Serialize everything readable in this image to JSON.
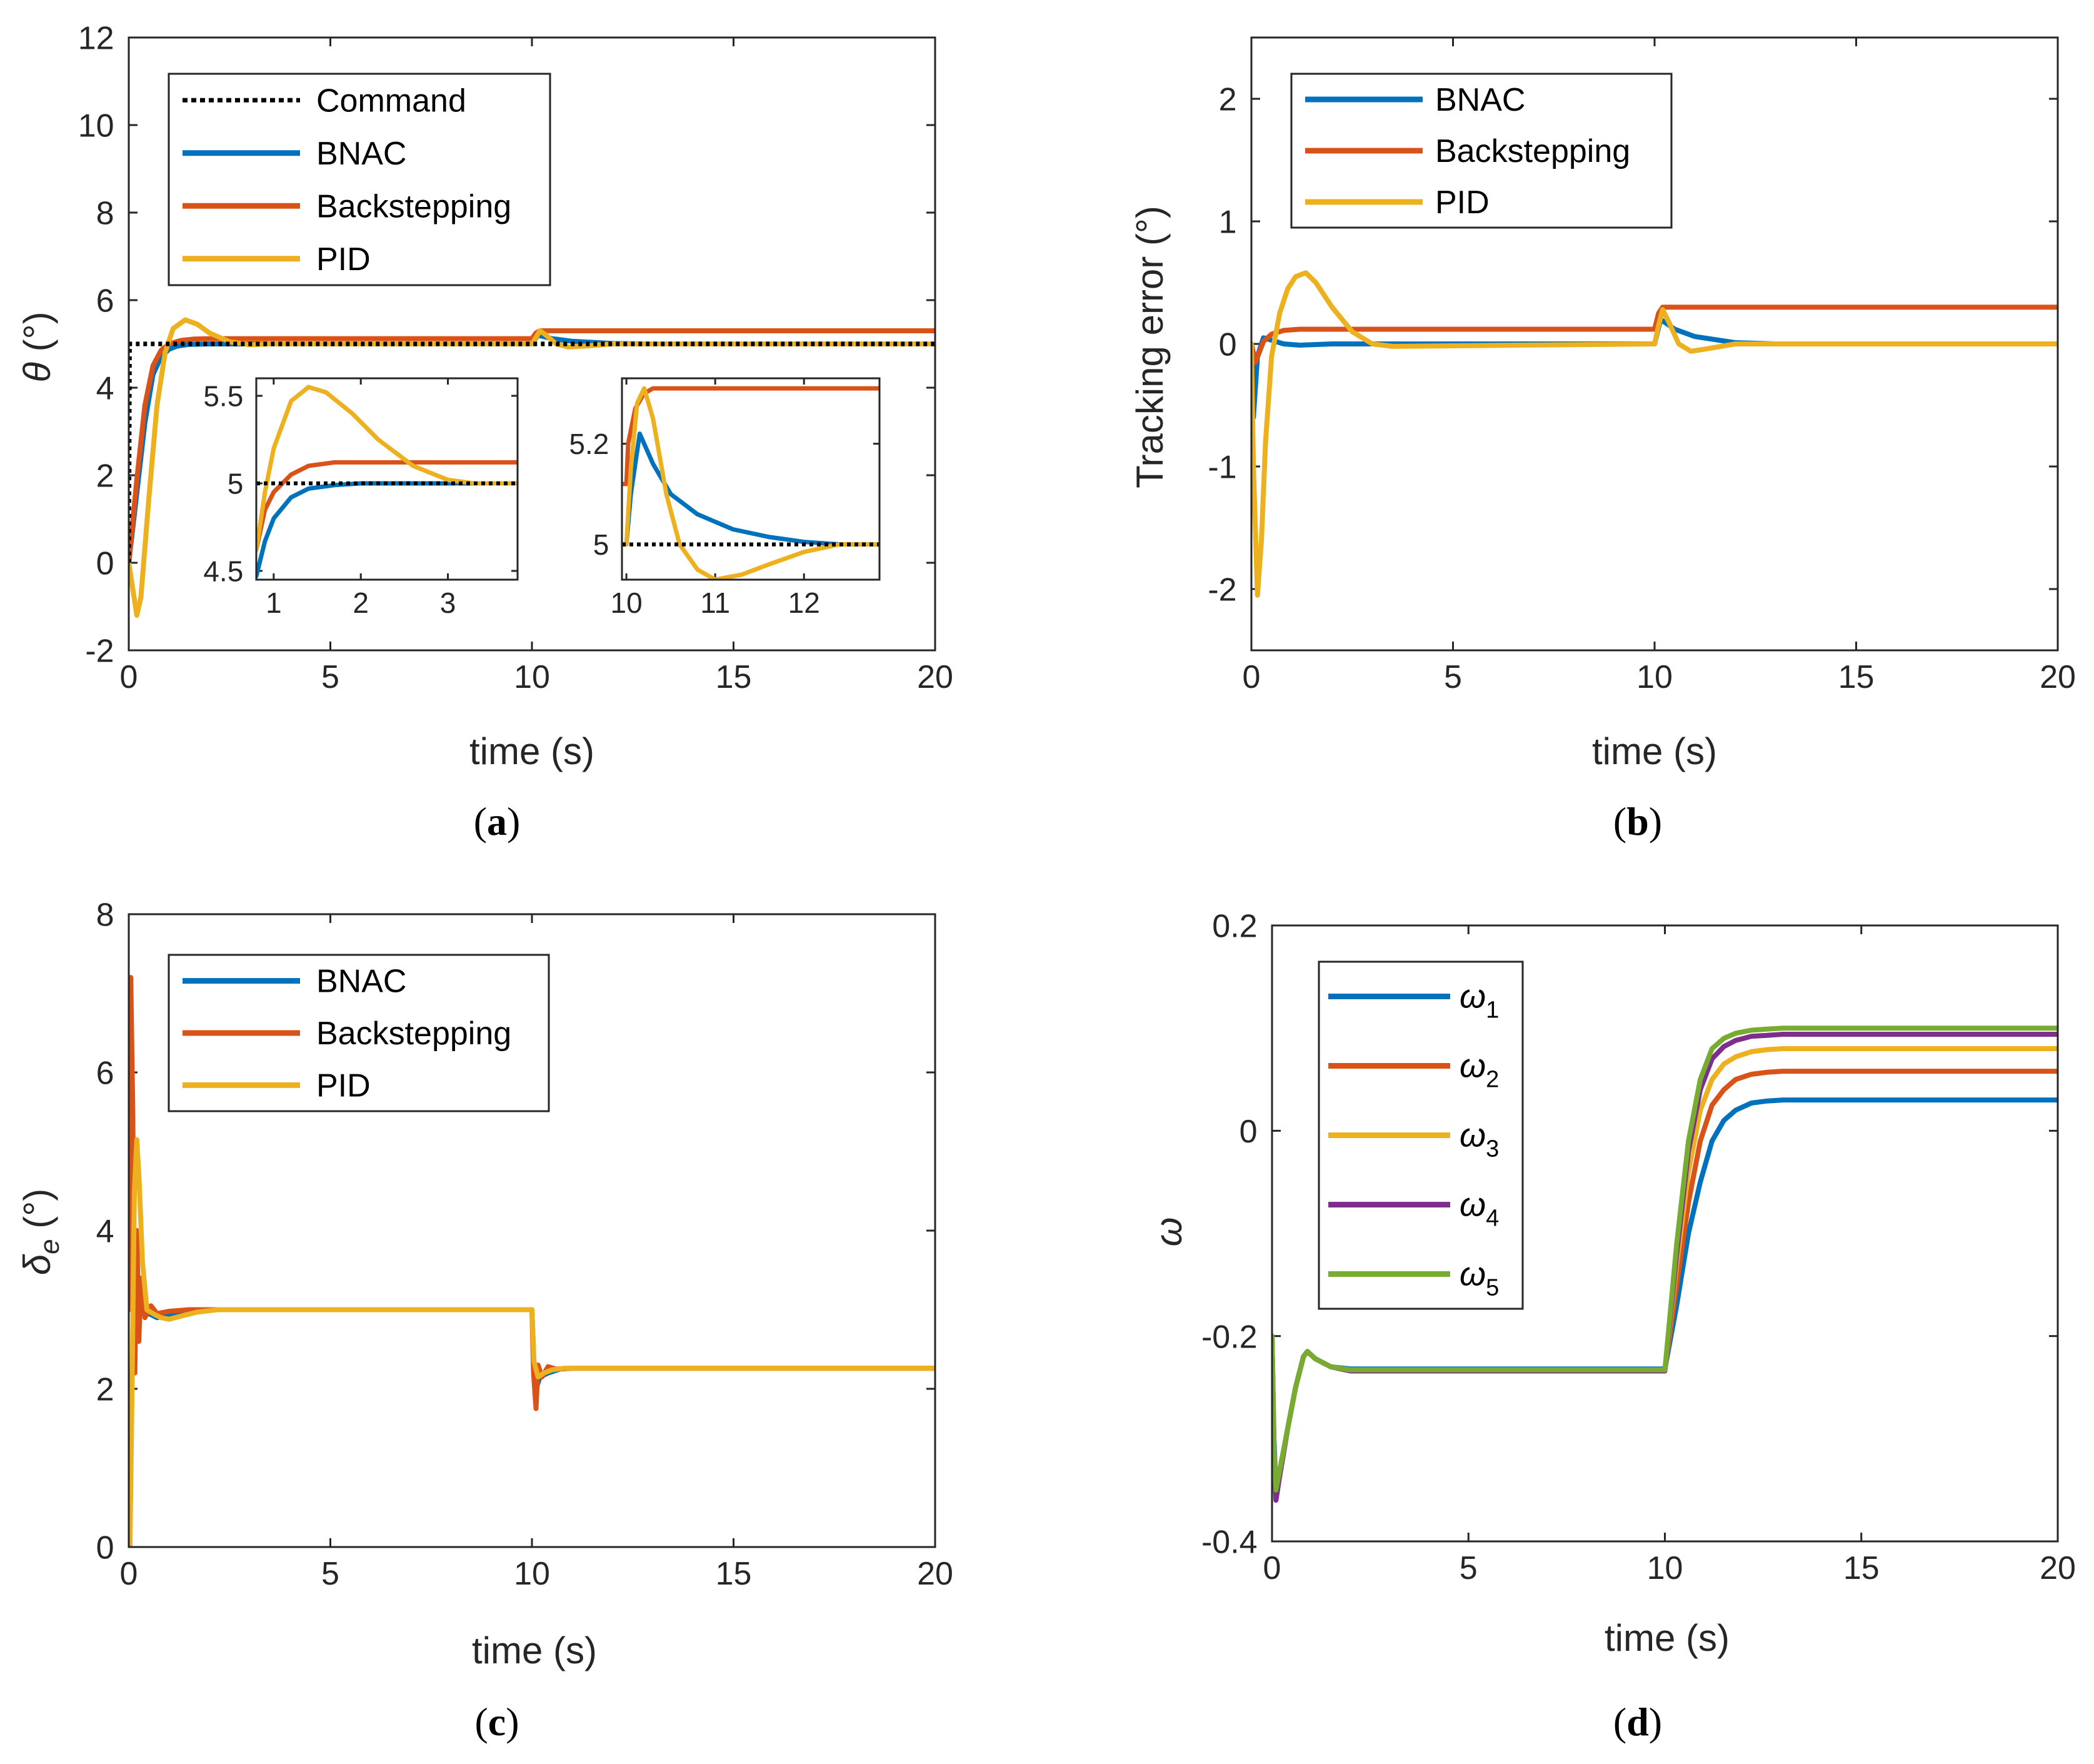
{
  "chart_data": [
    {
      "id": "a",
      "type": "line",
      "caption": "a",
      "xlabel": "time (s)",
      "ylabel": "θ (°)",
      "xlim": [
        0,
        20
      ],
      "ylim": [
        -2,
        12
      ],
      "xticks": [
        "0",
        "5",
        "10",
        "15",
        "20"
      ],
      "yticks": [
        "-2",
        "0",
        "2",
        "4",
        "6",
        "8",
        "10",
        "12"
      ],
      "legend": [
        "Command",
        "BNAC",
        "Backstepping",
        "PID"
      ],
      "series": [
        {
          "name": "Command",
          "color": "#000000",
          "dash": true,
          "x": [
            0,
            0.02,
            20
          ],
          "y": [
            0,
            5,
            5
          ]
        },
        {
          "name": "BNAC",
          "color": "#0072BD",
          "x": [
            0,
            0.2,
            0.4,
            0.6,
            0.8,
            1.0,
            1.2,
            1.5,
            2,
            3,
            10,
            10.15,
            10.5,
            11,
            12,
            13,
            20
          ],
          "y": [
            0,
            1.6,
            3.2,
            4.3,
            4.7,
            4.88,
            4.95,
            4.99,
            5.0,
            5.0,
            5.0,
            5.2,
            5.12,
            5.06,
            5.01,
            5.0,
            5.0
          ]
        },
        {
          "name": "Backstepping",
          "color": "#D95319",
          "x": [
            0,
            0.2,
            0.4,
            0.6,
            0.8,
            1.0,
            1.3,
            1.6,
            2,
            10,
            10.1,
            10.2,
            20
          ],
          "y": [
            0,
            1.9,
            3.6,
            4.5,
            4.85,
            5.0,
            5.08,
            5.11,
            5.12,
            5.12,
            5.25,
            5.3,
            5.3
          ]
        },
        {
          "name": "PID",
          "color": "#EDB120",
          "x": [
            0,
            0.1,
            0.2,
            0.3,
            0.5,
            0.7,
            0.9,
            1.1,
            1.4,
            1.7,
            2.0,
            2.5,
            3.0,
            3.5,
            10,
            10.1,
            10.2,
            10.35,
            10.6,
            10.9,
            11.3,
            12,
            12.5,
            20
          ],
          "y": [
            0,
            -0.6,
            -1.2,
            -0.8,
            1.5,
            3.6,
            4.8,
            5.35,
            5.55,
            5.45,
            5.25,
            5.05,
            4.98,
            5.0,
            5.0,
            5.15,
            5.3,
            5.2,
            5.0,
            4.93,
            4.95,
            5.0,
            5.0,
            5.0
          ]
        }
      ],
      "insets": [
        {
          "xlim": [
            0.8,
            3.8
          ],
          "ylim": [
            4.45,
            5.6
          ],
          "xticks": [
            "1",
            "2",
            "3"
          ],
          "yticks": [
            "4.5",
            "5",
            "5.5"
          ],
          "series": [
            {
              "name": "Command",
              "color": "#000000",
              "dash": true,
              "x": [
                0.8,
                3.8
              ],
              "y": [
                5,
                5
              ]
            },
            {
              "name": "BNAC",
              "color": "#0072BD",
              "x": [
                0.8,
                0.9,
                1.0,
                1.2,
                1.4,
                1.7,
                2.0,
                2.5,
                3.0,
                3.8
              ],
              "y": [
                4.47,
                4.67,
                4.8,
                4.92,
                4.97,
                4.99,
                5.0,
                5.0,
                5.0,
                5.0
              ]
            },
            {
              "name": "Backstepping",
              "color": "#D95319",
              "x": [
                0.8,
                0.9,
                1.0,
                1.2,
                1.4,
                1.7,
                2.0,
                3.8
              ],
              "y": [
                4.62,
                4.85,
                4.95,
                5.05,
                5.1,
                5.12,
                5.12,
                5.12
              ]
            },
            {
              "name": "PID",
              "color": "#EDB120",
              "x": [
                0.8,
                0.9,
                1.0,
                1.2,
                1.4,
                1.6,
                1.9,
                2.2,
                2.6,
                3.0,
                3.3,
                3.8
              ],
              "y": [
                4.62,
                4.95,
                5.2,
                5.47,
                5.55,
                5.52,
                5.4,
                5.25,
                5.1,
                5.02,
                5.0,
                5.0
              ]
            }
          ]
        },
        {
          "xlim": [
            9.95,
            12.85
          ],
          "ylim": [
            4.93,
            5.33
          ],
          "xticks": [
            "10",
            "11",
            "12"
          ],
          "yticks": [
            "5",
            "5.2"
          ],
          "series": [
            {
              "name": "Command",
              "color": "#000000",
              "dash": true,
              "x": [
                9.95,
                12.85
              ],
              "y": [
                5,
                5
              ]
            },
            {
              "name": "BNAC",
              "color": "#0072BD",
              "x": [
                9.95,
                10.0,
                10.05,
                10.15,
                10.3,
                10.5,
                10.8,
                11.2,
                11.6,
                12.0,
                12.4,
                12.85
              ],
              "y": [
                5.0,
                5.0,
                5.1,
                5.22,
                5.16,
                5.1,
                5.06,
                5.03,
                5.015,
                5.005,
                5.0,
                5.0
              ]
            },
            {
              "name": "Backstepping",
              "color": "#D95319",
              "x": [
                9.95,
                10.0,
                10.02,
                10.1,
                10.2,
                10.3,
                12.85
              ],
              "y": [
                5.12,
                5.12,
                5.2,
                5.27,
                5.3,
                5.31,
                5.31
              ]
            },
            {
              "name": "PID",
              "color": "#EDB120",
              "x": [
                9.95,
                10.0,
                10.05,
                10.12,
                10.2,
                10.3,
                10.45,
                10.6,
                10.8,
                11.0,
                11.3,
                11.6,
                12.0,
                12.4,
                12.85
              ],
              "y": [
                5.0,
                5.0,
                5.15,
                5.28,
                5.31,
                5.25,
                5.1,
                5.0,
                4.95,
                4.93,
                4.94,
                4.96,
                4.985,
                5.0,
                5.0
              ]
            }
          ]
        }
      ]
    },
    {
      "id": "b",
      "type": "line",
      "caption": "b",
      "xlabel": "time (s)",
      "ylabel": "Tracking error (°)",
      "xlim": [
        0,
        20
      ],
      "ylim": [
        -2.5,
        2.5
      ],
      "xticks": [
        "0",
        "5",
        "10",
        "15",
        "20"
      ],
      "yticks": [
        "-2",
        "-1",
        "0",
        "1",
        "2"
      ],
      "legend": [
        "BNAC",
        "Backstepping",
        "PID"
      ],
      "series": [
        {
          "name": "BNAC",
          "color": "#0072BD",
          "x": [
            0,
            0.05,
            0.15,
            0.3,
            0.5,
            0.8,
            1.2,
            2,
            10,
            10.15,
            10.5,
            11,
            12,
            13,
            20
          ],
          "y": [
            0,
            -0.6,
            -0.1,
            0.05,
            0.03,
            0.0,
            -0.01,
            0.0,
            0.0,
            0.2,
            0.12,
            0.06,
            0.01,
            0.0,
            0.0
          ]
        },
        {
          "name": "Backstepping",
          "color": "#D95319",
          "x": [
            0,
            0.1,
            0.3,
            0.5,
            0.8,
            1.2,
            10,
            10.1,
            10.2,
            20
          ],
          "y": [
            0,
            -0.15,
            0.02,
            0.08,
            0.11,
            0.12,
            0.12,
            0.25,
            0.3,
            0.3
          ]
        },
        {
          "name": "PID",
          "color": "#EDB120",
          "x": [
            0,
            0.05,
            0.15,
            0.25,
            0.35,
            0.5,
            0.7,
            0.9,
            1.1,
            1.35,
            1.6,
            2.0,
            2.5,
            3.0,
            3.5,
            10,
            10.1,
            10.2,
            10.35,
            10.6,
            10.9,
            11.3,
            12,
            12.5,
            20
          ],
          "y": [
            0,
            -1.0,
            -2.05,
            -1.6,
            -0.8,
            -0.1,
            0.25,
            0.45,
            0.55,
            0.58,
            0.5,
            0.3,
            0.1,
            0.0,
            -0.02,
            0.0,
            0.15,
            0.28,
            0.18,
            0.0,
            -0.06,
            -0.04,
            0.0,
            0.0,
            0.0
          ]
        }
      ]
    },
    {
      "id": "c",
      "type": "line",
      "caption": "c",
      "xlabel": "time (s)",
      "ylabel": "δe (°)",
      "xlim": [
        0,
        20
      ],
      "ylim": [
        0,
        8
      ],
      "xticks": [
        "0",
        "5",
        "10",
        "15",
        "20"
      ],
      "yticks": [
        "0",
        "2",
        "4",
        "6",
        "8"
      ],
      "legend": [
        "BNAC",
        "Backstepping",
        "PID"
      ],
      "series": [
        {
          "name": "BNAC",
          "color": "#0072BD",
          "x": [
            0,
            0.05,
            0.1,
            0.15,
            0.25,
            0.35,
            0.5,
            0.7,
            1.0,
            1.5,
            2,
            10,
            10.05,
            10.1,
            10.2,
            10.4,
            10.7,
            11,
            20
          ],
          "y": [
            3.0,
            4.0,
            3.5,
            2.6,
            3.3,
            3.0,
            2.95,
            2.9,
            2.93,
            2.97,
            3.0,
            3.0,
            2.3,
            2.0,
            2.15,
            2.2,
            2.25,
            2.26,
            2.26
          ]
        },
        {
          "name": "Backstepping",
          "color": "#D95319",
          "x": [
            0,
            0.05,
            0.1,
            0.15,
            0.2,
            0.25,
            0.3,
            0.4,
            0.55,
            0.7,
            1.0,
            1.5,
            2,
            10,
            10.04,
            10.1,
            10.15,
            10.25,
            10.4,
            10.6,
            11,
            20
          ],
          "y": [
            3.0,
            7.2,
            5.5,
            2.2,
            4.0,
            2.6,
            3.4,
            2.9,
            3.05,
            2.95,
            2.98,
            3.0,
            3.0,
            3.0,
            2.2,
            1.75,
            2.3,
            2.15,
            2.28,
            2.25,
            2.26,
            2.26
          ]
        },
        {
          "name": "PID",
          "color": "#EDB120",
          "x": [
            0,
            0.03,
            0.08,
            0.14,
            0.2,
            0.26,
            0.34,
            0.45,
            0.6,
            0.8,
            1.0,
            1.3,
            1.7,
            2.2,
            2.7,
            10,
            10.05,
            10.15,
            10.3,
            10.5,
            10.8,
            11.2,
            20
          ],
          "y": [
            0.0,
            0.0,
            2.0,
            4.5,
            5.15,
            4.6,
            3.6,
            3.0,
            2.95,
            2.9,
            2.88,
            2.92,
            2.97,
            3.0,
            3.0,
            3.0,
            2.35,
            2.15,
            2.2,
            2.24,
            2.26,
            2.26,
            2.26
          ]
        }
      ]
    },
    {
      "id": "d",
      "type": "line",
      "caption": "d",
      "xlabel": "time (s)",
      "ylabel": "ω",
      "xlim": [
        0,
        20
      ],
      "ylim": [
        -0.4,
        0.2
      ],
      "xticks": [
        "0",
        "5",
        "10",
        "15",
        "20"
      ],
      "yticks": [
        "-0.4",
        "-0.2",
        "0",
        "0.2"
      ],
      "legend": [
        "ω1",
        "ω2",
        "ω3",
        "ω4",
        "ω5"
      ],
      "series": [
        {
          "name": "ω1",
          "color": "#0072BD",
          "x": [
            0,
            0.05,
            0.1,
            0.2,
            0.4,
            0.6,
            0.8,
            0.9,
            1.1,
            1.5,
            2,
            10,
            10.3,
            10.6,
            10.9,
            11.2,
            11.5,
            11.8,
            12.2,
            12.6,
            13,
            20
          ],
          "y": [
            -0.2,
            -0.3,
            -0.35,
            -0.33,
            -0.29,
            -0.25,
            -0.22,
            -0.215,
            -0.222,
            -0.23,
            -0.232,
            -0.232,
            -0.17,
            -0.1,
            -0.05,
            -0.01,
            0.01,
            0.02,
            0.027,
            0.029,
            0.03,
            0.03
          ]
        },
        {
          "name": "ω2",
          "color": "#D95319",
          "x": [
            0,
            0.05,
            0.1,
            0.2,
            0.4,
            0.6,
            0.8,
            0.9,
            1.1,
            1.5,
            2,
            10,
            10.3,
            10.6,
            10.9,
            11.2,
            11.5,
            11.8,
            12.2,
            12.6,
            13,
            20
          ],
          "y": [
            -0.2,
            -0.31,
            -0.355,
            -0.335,
            -0.29,
            -0.25,
            -0.22,
            -0.215,
            -0.222,
            -0.23,
            -0.233,
            -0.233,
            -0.15,
            -0.07,
            -0.01,
            0.025,
            0.04,
            0.05,
            0.055,
            0.057,
            0.058,
            0.058
          ]
        },
        {
          "name": "ω3",
          "color": "#EDB120",
          "x": [
            0,
            0.05,
            0.1,
            0.2,
            0.4,
            0.6,
            0.8,
            0.9,
            1.1,
            1.5,
            2,
            10,
            10.3,
            10.6,
            10.9,
            11.2,
            11.5,
            11.8,
            12.2,
            12.6,
            13,
            20
          ],
          "y": [
            -0.2,
            -0.31,
            -0.355,
            -0.335,
            -0.29,
            -0.25,
            -0.22,
            -0.215,
            -0.222,
            -0.23,
            -0.233,
            -0.233,
            -0.13,
            -0.04,
            0.02,
            0.05,
            0.065,
            0.072,
            0.077,
            0.079,
            0.08,
            0.08
          ]
        },
        {
          "name": "ω4",
          "color": "#7E2F8E",
          "x": [
            0,
            0.05,
            0.1,
            0.2,
            0.4,
            0.6,
            0.8,
            0.9,
            1.1,
            1.5,
            2,
            10,
            10.3,
            10.6,
            10.9,
            11.2,
            11.5,
            11.8,
            12.2,
            12.6,
            13,
            20
          ],
          "y": [
            -0.2,
            -0.31,
            -0.36,
            -0.335,
            -0.29,
            -0.25,
            -0.22,
            -0.215,
            -0.222,
            -0.23,
            -0.234,
            -0.234,
            -0.12,
            -0.02,
            0.04,
            0.07,
            0.082,
            0.088,
            0.092,
            0.093,
            0.094,
            0.094
          ]
        },
        {
          "name": "ω5",
          "color": "#77AC30",
          "x": [
            0,
            0.05,
            0.1,
            0.2,
            0.4,
            0.6,
            0.8,
            0.9,
            1.1,
            1.5,
            2,
            10,
            10.3,
            10.6,
            10.9,
            11.2,
            11.5,
            11.8,
            12.2,
            12.6,
            13,
            20
          ],
          "y": [
            -0.2,
            -0.31,
            -0.35,
            -0.33,
            -0.29,
            -0.25,
            -0.22,
            -0.215,
            -0.222,
            -0.23,
            -0.233,
            -0.233,
            -0.11,
            -0.01,
            0.05,
            0.08,
            0.09,
            0.095,
            0.098,
            0.099,
            0.1,
            0.1
          ]
        }
      ]
    }
  ]
}
